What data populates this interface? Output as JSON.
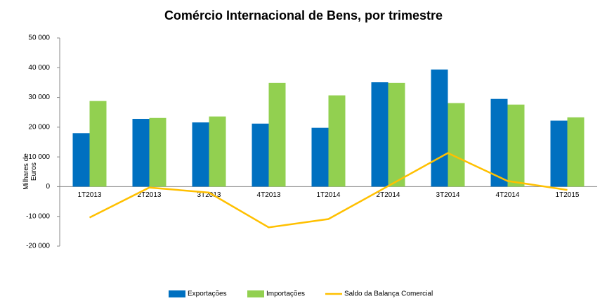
{
  "chart_data": {
    "type": "bar",
    "title": "Comércio Internacional de Bens, por trimestre",
    "y_label": "Milhares de Euros",
    "categories": [
      "1T2013",
      "2T2013",
      "3T2013",
      "4T2013",
      "1T2014",
      "2T2014",
      "3T2014",
      "4T2014",
      "1T2015"
    ],
    "series": [
      {
        "name": "Exportações",
        "type": "bar",
        "color": "#0070c0",
        "values": [
          18000,
          22800,
          21600,
          21200,
          19800,
          35100,
          39400,
          29500,
          22200
        ]
      },
      {
        "name": "Importações",
        "type": "bar",
        "color": "#92d050",
        "values": [
          28800,
          23100,
          23600,
          34900,
          30700,
          34900,
          28100,
          27600,
          23300
        ]
      },
      {
        "name": "Saldo da Balança Comercial",
        "type": "line",
        "color": "#ffc000",
        "values": [
          -10400,
          -300,
          -2000,
          -13700,
          -10900,
          200,
          11300,
          1900,
          -1100
        ]
      }
    ],
    "ylim": [
      -20000,
      50000
    ],
    "yticks": [
      {
        "value": -20000,
        "label": "-20 000"
      },
      {
        "value": -10000,
        "label": "-10 000"
      },
      0,
      {
        "value": 10000,
        "label": "10 000"
      },
      {
        "value": 20000,
        "label": "20 000"
      },
      {
        "value": 30000,
        "label": "30 000"
      },
      {
        "value": 40000,
        "label": "40 000"
      },
      {
        "value": 50000,
        "label": "50 000"
      }
    ],
    "grid": false,
    "legend": "bottom"
  }
}
